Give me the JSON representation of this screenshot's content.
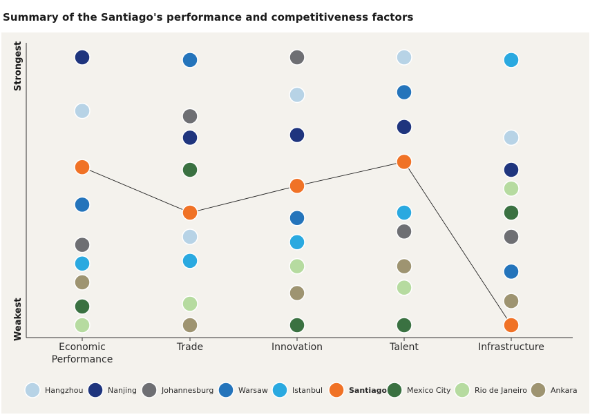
{
  "title": "Summary of the Santiago's performance and competitiveness factors",
  "chart_data": {
    "type": "scatter",
    "title": "Summary of the Santiago's performance and competitiveness factors",
    "ylabel_top": "Strongest",
    "ylabel_bottom": "Weakest",
    "categories": [
      "Economic\nPerformance",
      "Trade",
      "Innovation",
      "Talent",
      "Infrastructure"
    ],
    "ylim": [
      0,
      100
    ],
    "highlight": "Santiago",
    "series": [
      {
        "name": "Hangzhou",
        "color": "#b7d3e6",
        "values": [
          80,
          33,
          86,
          100,
          70
        ]
      },
      {
        "name": "Nanjing",
        "color": "#1f357e",
        "values": [
          100,
          70,
          71,
          74,
          58
        ]
      },
      {
        "name": "Johannesburg",
        "color": "#6e6f73",
        "values": [
          30,
          78,
          100,
          35,
          33
        ]
      },
      {
        "name": "Warsaw",
        "color": "#2474bb",
        "values": [
          45,
          99,
          40,
          87,
          20
        ]
      },
      {
        "name": "Istanbul",
        "color": "#2aa9e0",
        "values": [
          23,
          24,
          31,
          42,
          99
        ]
      },
      {
        "name": "Santiago",
        "color": "#f07226",
        "values": [
          59,
          42,
          52,
          61,
          0
        ]
      },
      {
        "name": "Mexico City",
        "color": "#3a7141",
        "values": [
          7,
          58,
          0,
          0,
          42
        ]
      },
      {
        "name": "Rio de Janeiro",
        "color": "#b6dba0",
        "values": [
          0,
          8,
          22,
          14,
          51
        ]
      },
      {
        "name": "Ankara",
        "color": "#9e9471",
        "values": [
          16,
          0,
          12,
          22,
          9
        ]
      }
    ]
  }
}
